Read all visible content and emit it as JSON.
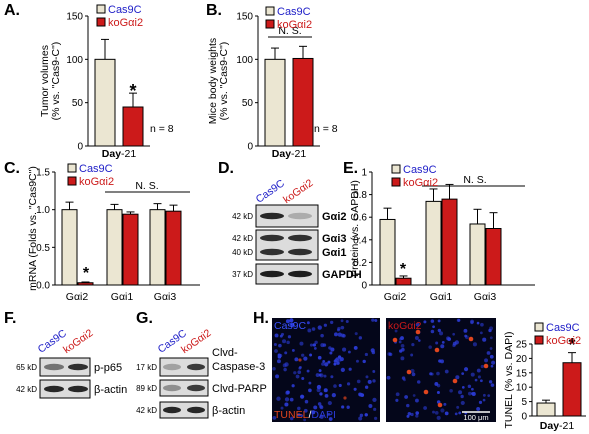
{
  "colors": {
    "cas9c_fill": "#ebe6d2",
    "kog_fill": "#cc1a1a",
    "cas9c_text": "#2020c8",
    "kog_text": "#cc1a1a",
    "blot_bg": "#dcdcdc",
    "tunel_red": "#e0451e",
    "dapi_blue": "#2b3bd6"
  },
  "legend": {
    "cas9c": "Cas9C",
    "kog": "koGαi2"
  },
  "panels": {
    "A": "A.",
    "B": "B.",
    "C": "C.",
    "D": "D.",
    "E": "E.",
    "F": "F.",
    "G": "G.",
    "H": "H."
  },
  "chart_data": [
    {
      "panel": "A",
      "type": "bar",
      "categories": [
        "Cas9C",
        "koGαi2"
      ],
      "values": [
        100,
        45
      ],
      "errors": [
        23,
        16
      ],
      "ylabel": "Tumor volumes (% vs. \"Cas9-C\")",
      "ylim": [
        0,
        150
      ],
      "yticks": [
        "0",
        "50",
        "100",
        "150"
      ],
      "xlabel": "Day-21",
      "annotations": {
        "star": "*",
        "n": "n = 8"
      }
    },
    {
      "panel": "B",
      "type": "bar",
      "categories": [
        "Cas9C",
        "koGαi2"
      ],
      "values": [
        100,
        101
      ],
      "errors": [
        13,
        14
      ],
      "ylabel": "Mice body weights (% vs. \"Cas9-C\")",
      "ylim": [
        0,
        150
      ],
      "yticks": [
        "0",
        "50",
        "100",
        "150"
      ],
      "xlabel": "Day-21",
      "annotations": {
        "ns": "N. S.",
        "n": "n = 8"
      }
    },
    {
      "panel": "C",
      "type": "bar",
      "categories": [
        "Gαi2",
        "Gαi1",
        "Gαi3"
      ],
      "series": [
        {
          "name": "Cas9C",
          "values": [
            1.0,
            1.0,
            1.0
          ],
          "errors": [
            0.1,
            0.07,
            0.08
          ]
        },
        {
          "name": "koGαi2",
          "values": [
            0.03,
            0.94,
            0.98
          ],
          "errors": [
            0.01,
            0.03,
            0.08
          ]
        }
      ],
      "ylabel": "mRNA (Folds vs. \"Cas9C\")",
      "ylim": [
        0,
        1.5
      ],
      "yticks": [
        "0.0",
        "0.5",
        "1.0",
        "1.5"
      ],
      "annotations": {
        "star": "*",
        "ns": "N. S."
      }
    },
    {
      "panel": "E",
      "type": "bar",
      "categories": [
        "Gαi2",
        "Gαi1",
        "Gαi3"
      ],
      "series": [
        {
          "name": "Cas9C",
          "values": [
            0.58,
            0.74,
            0.54
          ],
          "errors": [
            0.1,
            0.11,
            0.13
          ]
        },
        {
          "name": "koGαi2",
          "values": [
            0.06,
            0.76,
            0.5
          ],
          "errors": [
            0.02,
            0.13,
            0.14
          ]
        }
      ],
      "ylabel": "Protein (vs. GAPDH)",
      "ylim": [
        0,
        1.0
      ],
      "yticks": [
        "0",
        "0.2",
        "0.4",
        "0.6",
        "0.8",
        "1"
      ],
      "annotations": {
        "star": "*",
        "ns": "N. S."
      }
    },
    {
      "panel": "H",
      "type": "bar",
      "categories": [
        "Cas9C",
        "koGαi2"
      ],
      "values": [
        4.5,
        18.5
      ],
      "errors": [
        1.0,
        3.5
      ],
      "ylabel": "TUNEL (% vs. DAPI)",
      "ylim": [
        0,
        25
      ],
      "yticks": [
        "0",
        "5",
        "10",
        "15",
        "20",
        "25"
      ],
      "xlabel": "Day-21",
      "annotations": {
        "star": "*"
      }
    }
  ],
  "blots": {
    "D": {
      "lanes": [
        "Cas9C",
        "koGαi2"
      ],
      "rows": [
        {
          "mw": "42 kD",
          "label": "Gαi2",
          "intensity": [
            0.85,
            0.15
          ]
        },
        {
          "mw": "42 kD",
          "mw2": "40 kD",
          "label": "Gαi3",
          "label2": "Gαi1",
          "intensity": [
            0.8,
            0.8
          ]
        },
        {
          "mw": "37 kD",
          "label": "GAPDH",
          "intensity": [
            0.9,
            0.9
          ]
        }
      ]
    },
    "F": {
      "lanes": [
        "Cas9C",
        "koGαi2"
      ],
      "rows": [
        {
          "mw": "65 kD",
          "label": "p-p65",
          "intensity": [
            0.45,
            0.8
          ]
        },
        {
          "mw": "42 kD",
          "label": "β-actin",
          "intensity": [
            0.85,
            0.85
          ]
        }
      ]
    },
    "G": {
      "lanes": [
        "Cas9C",
        "koGαi2"
      ],
      "rows": [
        {
          "mw": "17 kD",
          "label": "Clvd-",
          "label2": "Caspase-3",
          "intensity": [
            0.2,
            0.75
          ]
        },
        {
          "mw": "89 kD",
          "label": "Clvd-PARP",
          "intensity": [
            0.3,
            0.75
          ]
        },
        {
          "mw": "42 kD",
          "label": "β-actin",
          "intensity": [
            0.85,
            0.85
          ]
        }
      ]
    }
  },
  "micrographs": {
    "left_label": "Cas9C",
    "right_label": "koGαi2",
    "stain_tunel": "TUNEL",
    "stain_sep": "/",
    "stain_dapi": "DAPI",
    "scale_bar": "100 μm"
  }
}
